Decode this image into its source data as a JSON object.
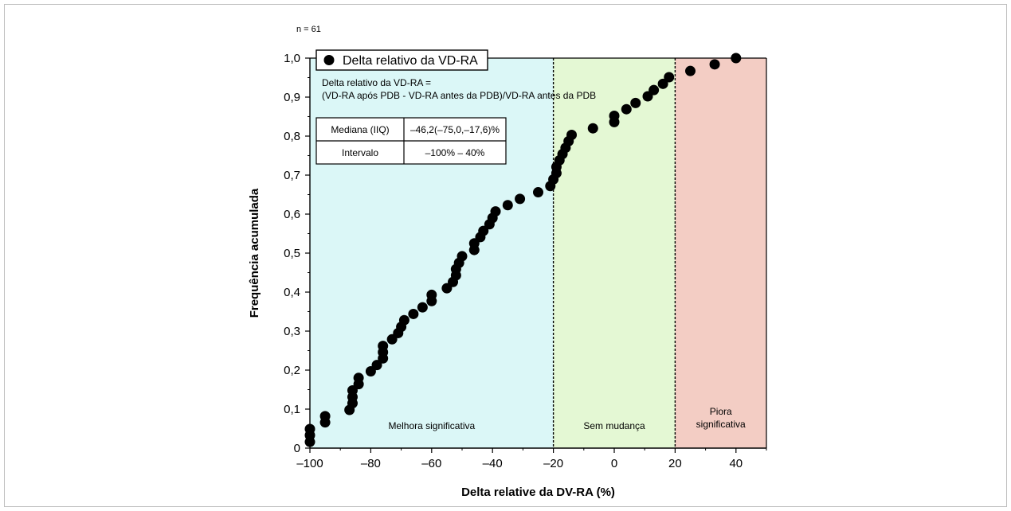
{
  "chart_data": {
    "type": "scatter",
    "n_label": "n = 61",
    "xlabel": "Delta relative da DV-RA (%)",
    "ylabel": "Frequência acumulada",
    "xlim": [
      -100,
      50
    ],
    "ylim": [
      0,
      1.0
    ],
    "x_ticks": [
      -100,
      -80,
      -60,
      -40,
      -20,
      0,
      20,
      40
    ],
    "x_tick_labels": [
      "–100",
      "–80",
      "–60",
      "–40",
      "–20",
      "0",
      "20",
      "40"
    ],
    "y_ticks": [
      0,
      0.1,
      0.2,
      0.3,
      0.4,
      0.5,
      0.6,
      0.7,
      0.8,
      0.9,
      1.0
    ],
    "y_tick_labels": [
      "0",
      "0,1",
      "0,2",
      "0,3",
      "0,4",
      "0,5",
      "0,6",
      "0,7",
      "0,8",
      "0,9",
      "1,0"
    ],
    "legend": {
      "label": "Delta relativo da VD-RA",
      "position": "top-left"
    },
    "formula_lines": [
      "Delta relativo da VD-RA =",
      "(VD-RA após PDB - VD-RA antes da PDB)/VD-RA antes da PDB"
    ],
    "stats_table": [
      {
        "label": "Mediana (IIQ)",
        "value": "–46,2(–75,0,–17,6)%"
      },
      {
        "label": "Intervalo",
        "value": "–100% – 40%"
      }
    ],
    "regions": [
      {
        "from": -100,
        "to": -20,
        "label": [
          "Melhora significativa"
        ],
        "color": "#dbf7f7"
      },
      {
        "from": -20,
        "to": 20,
        "label": [
          "Sem mudança"
        ],
        "color": "#e4f8d4"
      },
      {
        "from": 20,
        "to": 50,
        "label": [
          "Piora",
          "significativa"
        ],
        "color": "#f3cdc4"
      }
    ],
    "thresholds": [
      -20,
      20
    ],
    "points": [
      [
        -100,
        0.016
      ],
      [
        -100,
        0.033
      ],
      [
        -100,
        0.049
      ],
      [
        -95,
        0.066
      ],
      [
        -95,
        0.082
      ],
      [
        -87,
        0.098
      ],
      [
        -86,
        0.115
      ],
      [
        -86,
        0.131
      ],
      [
        -86,
        0.148
      ],
      [
        -84,
        0.164
      ],
      [
        -84,
        0.18
      ],
      [
        -80,
        0.197
      ],
      [
        -78,
        0.213
      ],
      [
        -76,
        0.23
      ],
      [
        -76,
        0.246
      ],
      [
        -76,
        0.262
      ],
      [
        -73,
        0.279
      ],
      [
        -71,
        0.295
      ],
      [
        -70,
        0.311
      ],
      [
        -69,
        0.328
      ],
      [
        -66,
        0.344
      ],
      [
        -63,
        0.361
      ],
      [
        -60,
        0.377
      ],
      [
        -60,
        0.393
      ],
      [
        -55,
        0.41
      ],
      [
        -53,
        0.426
      ],
      [
        -52,
        0.443
      ],
      [
        -52,
        0.459
      ],
      [
        -51,
        0.475
      ],
      [
        -50,
        0.492
      ],
      [
        -46,
        0.508
      ],
      [
        -46,
        0.525
      ],
      [
        -44,
        0.541
      ],
      [
        -43,
        0.557
      ],
      [
        -41,
        0.574
      ],
      [
        -40,
        0.59
      ],
      [
        -39,
        0.607
      ],
      [
        -35,
        0.623
      ],
      [
        -31,
        0.639
      ],
      [
        -25,
        0.656
      ],
      [
        -21,
        0.672
      ],
      [
        -20,
        0.689
      ],
      [
        -19,
        0.705
      ],
      [
        -19,
        0.721
      ],
      [
        -18,
        0.738
      ],
      [
        -17,
        0.754
      ],
      [
        -16,
        0.77
      ],
      [
        -15,
        0.787
      ],
      [
        -14,
        0.803
      ],
      [
        -7,
        0.82
      ],
      [
        0,
        0.836
      ],
      [
        0,
        0.852
      ],
      [
        4,
        0.869
      ],
      [
        7,
        0.885
      ],
      [
        11,
        0.902
      ],
      [
        13,
        0.918
      ],
      [
        16,
        0.934
      ],
      [
        18,
        0.951
      ],
      [
        25,
        0.967
      ],
      [
        33,
        0.984
      ],
      [
        40,
        1.0
      ]
    ],
    "grid": false
  }
}
